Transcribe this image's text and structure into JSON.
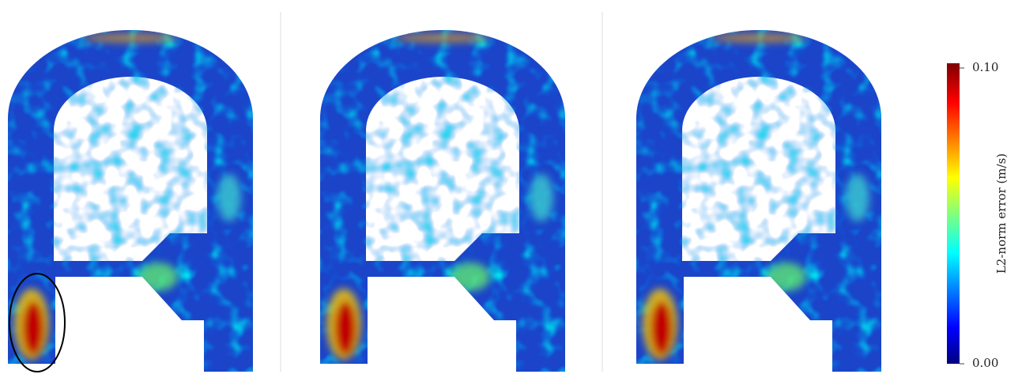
{
  "colorbar": {
    "label": "L2-norm error (m/s)",
    "range": [
      0,
      0.1
    ],
    "ticks": [
      {
        "value": 0,
        "label": "0.00"
      },
      {
        "value": 0.1,
        "label": "0.10"
      }
    ]
  }
}
